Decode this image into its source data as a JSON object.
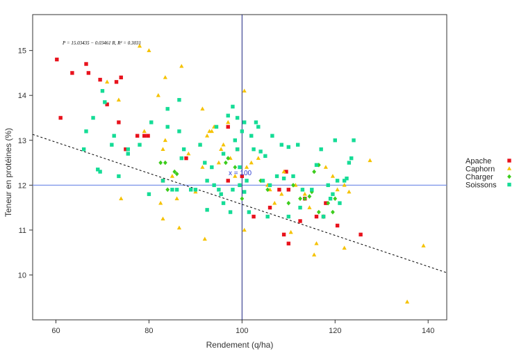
{
  "chart_data": {
    "type": "scatter",
    "title": "",
    "xlabel": "Rendement (q/ha)",
    "ylabel": "Teneur en protéines (%)",
    "xlim": [
      55,
      144
    ],
    "ylim": [
      9.0,
      15.8
    ],
    "xticks": [
      60,
      80,
      100,
      120,
      140
    ],
    "yticks": [
      10,
      11,
      12,
      13,
      14,
      15
    ],
    "grid": false,
    "legend_position": "right",
    "annotation_equation": "P = 15.03435 − 0.03461 R, R² = 0.3031",
    "annotation_xbar": "x = 100",
    "reference_lines": {
      "vertical_x": 100,
      "horizontal_y": 12
    },
    "regression": {
      "intercept": 15.03435,
      "slope": -0.03461
    },
    "series": [
      {
        "name": "Apache",
        "marker": "square",
        "color": "#e8121c",
        "points": [
          [
            60.2,
            14.8
          ],
          [
            61,
            13.5
          ],
          [
            63.5,
            14.5
          ],
          [
            66.5,
            14.7
          ],
          [
            67,
            14.5
          ],
          [
            69.5,
            14.35
          ],
          [
            71,
            13.8
          ],
          [
            73,
            14.3
          ],
          [
            73.5,
            13.4
          ],
          [
            74,
            14.4
          ],
          [
            75,
            12.8
          ],
          [
            77.5,
            13.1
          ],
          [
            79,
            13.1
          ],
          [
            79.8,
            13.1
          ],
          [
            83,
            12.1
          ],
          [
            88,
            12.6
          ],
          [
            97,
            13.3
          ],
          [
            97,
            12.1
          ],
          [
            99,
            12.8
          ],
          [
            100,
            12.2
          ],
          [
            102.5,
            11.3
          ],
          [
            106,
            11.5
          ],
          [
            108,
            11.9
          ],
          [
            109,
            10.9
          ],
          [
            109.5,
            12.3
          ],
          [
            110,
            10.7
          ],
          [
            110,
            11.9
          ],
          [
            112.5,
            11.2
          ],
          [
            113.5,
            11.7
          ],
          [
            116,
            11.3
          ],
          [
            117.5,
            11.3
          ],
          [
            118,
            11.6
          ],
          [
            120.5,
            11.1
          ],
          [
            125.5,
            10.9
          ]
        ]
      },
      {
        "name": "Caphorn",
        "marker": "triangle",
        "color": "#f5c200",
        "points": [
          [
            71,
            14.3
          ],
          [
            73.5,
            13.9
          ],
          [
            74,
            11.7
          ],
          [
            78,
            15.1
          ],
          [
            80,
            15.0
          ],
          [
            82,
            14.0
          ],
          [
            83.5,
            14.4
          ],
          [
            87,
            14.65
          ],
          [
            79,
            13.2
          ],
          [
            82.5,
            11.6
          ],
          [
            83,
            11.25
          ],
          [
            83,
            12.8
          ],
          [
            83.5,
            13.0
          ],
          [
            85,
            12.2
          ],
          [
            86,
            11.7
          ],
          [
            86.5,
            11.05
          ],
          [
            88.5,
            12.7
          ],
          [
            90,
            11.85
          ],
          [
            91,
            12.9
          ],
          [
            91.5,
            12.4
          ],
          [
            91.5,
            13.7
          ],
          [
            92,
            10.8
          ],
          [
            92.5,
            13.1
          ],
          [
            93,
            13.2
          ],
          [
            93.5,
            13.2
          ],
          [
            94,
            13.3
          ],
          [
            95,
            12.5
          ],
          [
            95.5,
            12.8
          ],
          [
            96,
            12.9
          ],
          [
            97,
            13.4
          ],
          [
            97.5,
            12.6
          ],
          [
            98.5,
            12.2
          ],
          [
            99.5,
            12.0
          ],
          [
            100.5,
            14.1
          ],
          [
            100.5,
            11.0
          ],
          [
            101,
            12.4
          ],
          [
            102,
            12.5
          ],
          [
            103.5,
            12.6
          ],
          [
            104.5,
            12.1
          ],
          [
            105.5,
            12.0
          ],
          [
            106,
            11.9
          ],
          [
            107,
            11.6
          ],
          [
            108.5,
            11.8
          ],
          [
            109,
            12.3
          ],
          [
            110.5,
            10.95
          ],
          [
            111.5,
            12.0
          ],
          [
            113,
            11.9
          ],
          [
            113.5,
            11.8
          ],
          [
            114.5,
            11.5
          ],
          [
            115.5,
            10.45
          ],
          [
            116,
            10.7
          ],
          [
            118,
            12.4
          ],
          [
            119.5,
            12.2
          ],
          [
            120.5,
            11.9
          ],
          [
            122,
            10.6
          ],
          [
            122,
            12.0
          ],
          [
            123,
            11.85
          ],
          [
            127.5,
            12.55
          ],
          [
            135.5,
            9.4
          ],
          [
            139,
            10.65
          ]
        ]
      },
      {
        "name": "Charger",
        "marker": "diamond",
        "color": "#3ccc1c",
        "points": [
          [
            82.5,
            12.5
          ],
          [
            83.5,
            12.5
          ],
          [
            84,
            11.9
          ],
          [
            85.5,
            12.3
          ],
          [
            86,
            12.25
          ],
          [
            96.5,
            12.5
          ],
          [
            97,
            12.6
          ],
          [
            98.5,
            12.4
          ],
          [
            100,
            11.7
          ],
          [
            104,
            12.1
          ],
          [
            105.5,
            11.9
          ],
          [
            110,
            11.6
          ],
          [
            111,
            12.0
          ],
          [
            112.5,
            11.7
          ],
          [
            113.5,
            11.7
          ],
          [
            114.5,
            11.75
          ],
          [
            115,
            11.85
          ],
          [
            115.5,
            12.3
          ],
          [
            116.5,
            12.45
          ],
          [
            116.5,
            11.4
          ],
          [
            117.5,
            11.3
          ],
          [
            118.5,
            11.6
          ],
          [
            119.5,
            11.4
          ],
          [
            120,
            11.7
          ]
        ]
      },
      {
        "name": "Soissons",
        "marker": "square",
        "color": "#15dc96",
        "points": [
          [
            66,
            12.8
          ],
          [
            66.5,
            13.2
          ],
          [
            68,
            13.5
          ],
          [
            69,
            12.35
          ],
          [
            69.5,
            12.3
          ],
          [
            70,
            14.1
          ],
          [
            70.5,
            13.85
          ],
          [
            72,
            12.9
          ],
          [
            72.5,
            13.1
          ],
          [
            73.5,
            12.2
          ],
          [
            75.5,
            12.8
          ],
          [
            75.5,
            12.7
          ],
          [
            78,
            12.9
          ],
          [
            80,
            11.8
          ],
          [
            80.5,
            13.4
          ],
          [
            83,
            12.1
          ],
          [
            84,
            13.3
          ],
          [
            84,
            13.7
          ],
          [
            85,
            11.9
          ],
          [
            86,
            11.9
          ],
          [
            86.5,
            13.2
          ],
          [
            86.5,
            13.9
          ],
          [
            87,
            12.6
          ],
          [
            87.5,
            12.8
          ],
          [
            89,
            11.9
          ],
          [
            90,
            11.9
          ],
          [
            91,
            12.9
          ],
          [
            92,
            12.5
          ],
          [
            92.5,
            11.45
          ],
          [
            92.5,
            12.1
          ],
          [
            93.5,
            12.4
          ],
          [
            94,
            12.0
          ],
          [
            94.5,
            13.3
          ],
          [
            95,
            11.9
          ],
          [
            95.5,
            11.8
          ],
          [
            96,
            12.7
          ],
          [
            96,
            11.6
          ],
          [
            97,
            13.55
          ],
          [
            97.5,
            11.4
          ],
          [
            98,
            13.75
          ],
          [
            98.5,
            13.0
          ],
          [
            98,
            11.9
          ],
          [
            99,
            13.5
          ],
          [
            99,
            12.8
          ],
          [
            99.5,
            12.4
          ],
          [
            99.5,
            12.0
          ],
          [
            100,
            13.2
          ],
          [
            100.5,
            13.4
          ],
          [
            100.5,
            11.85
          ],
          [
            101,
            12.1
          ],
          [
            101.5,
            11.4
          ],
          [
            102,
            13.1
          ],
          [
            102.5,
            12.8
          ],
          [
            103,
            13.4
          ],
          [
            103.5,
            13.3
          ],
          [
            104,
            12.75
          ],
          [
            104.5,
            12.1
          ],
          [
            105,
            12.65
          ],
          [
            105.5,
            11.3
          ],
          [
            106,
            12.0
          ],
          [
            106.5,
            13.1
          ],
          [
            107.5,
            12.2
          ],
          [
            108.5,
            12.9
          ],
          [
            109,
            12.15
          ],
          [
            110,
            12.85
          ],
          [
            110,
            11.3
          ],
          [
            111,
            12.2
          ],
          [
            112,
            12.9
          ],
          [
            112.5,
            11.5
          ],
          [
            113,
            11.9
          ],
          [
            115,
            11.9
          ],
          [
            116,
            12.45
          ],
          [
            117,
            12.8
          ],
          [
            117.5,
            11.3
          ],
          [
            118.5,
            12.0
          ],
          [
            119,
            11.7
          ],
          [
            119.5,
            11.8
          ],
          [
            120,
            13.0
          ],
          [
            120.5,
            12.1
          ],
          [
            121,
            11.6
          ],
          [
            122,
            12.1
          ],
          [
            122.5,
            12.15
          ],
          [
            123,
            12.5
          ],
          [
            123.5,
            12.6
          ],
          [
            124,
            13.0
          ]
        ]
      }
    ]
  }
}
